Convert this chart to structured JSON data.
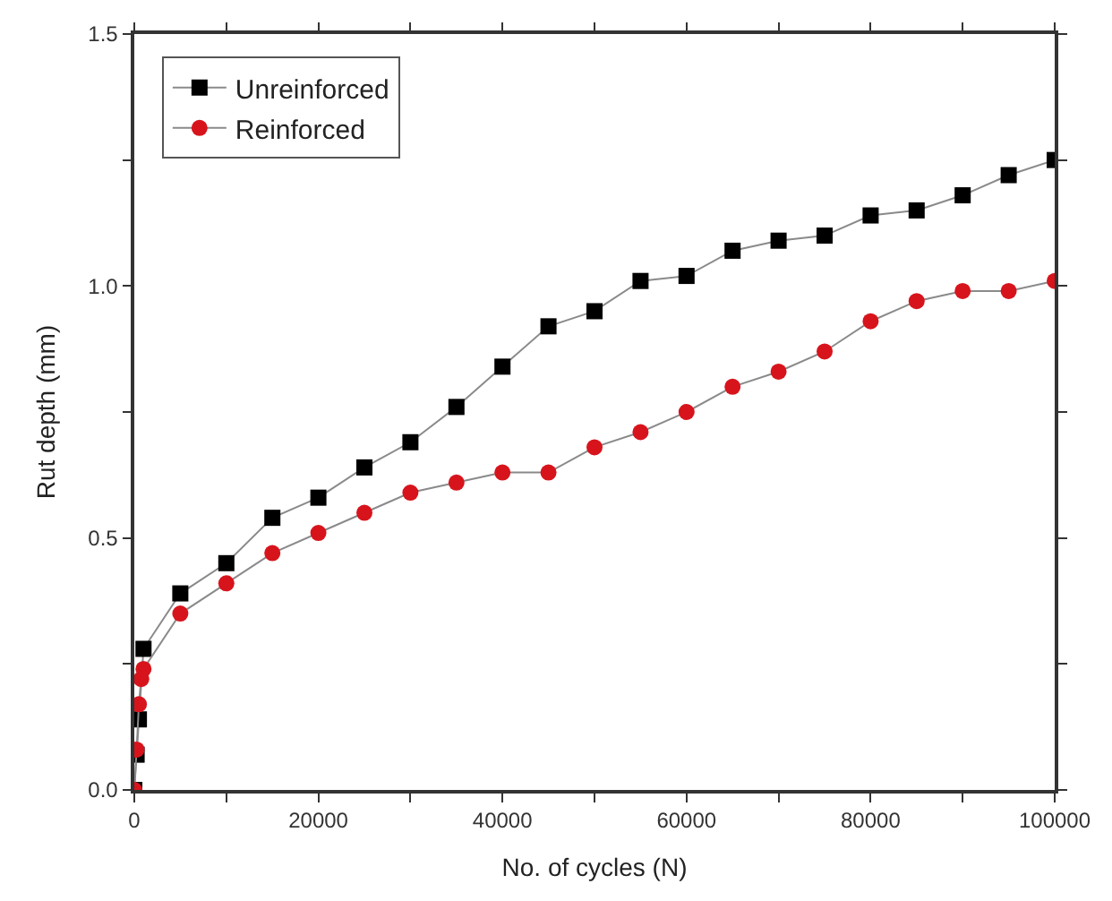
{
  "chart_data": {
    "type": "line",
    "xlabel": "No. of cycles (N)",
    "ylabel": "Rut depth (mm)",
    "xlim": [
      0,
      100000
    ],
    "ylim": [
      0,
      1.5
    ],
    "xticks": [
      0,
      {
        "value": 10000,
        "label": null
      },
      20000,
      {
        "value": 30000,
        "label": null
      },
      40000,
      {
        "value": 50000,
        "label": null
      },
      60000,
      {
        "value": 70000,
        "label": null
      },
      80000,
      {
        "value": 90000,
        "label": null
      },
      100000
    ],
    "yticks": [
      {
        "value": 0,
        "label": "0.0"
      },
      {
        "value": 0.25,
        "label": null
      },
      0.5,
      {
        "value": 0.75,
        "label": null
      },
      {
        "value": 1,
        "label": "1.0"
      },
      {
        "value": 1.25,
        "label": null
      },
      1.5
    ],
    "legend": "top left",
    "series": [
      {
        "name": "Unreinforced",
        "color": "#000000",
        "marker": "square",
        "x": [
          0,
          250,
          500,
          1000,
          5000,
          10000,
          15000,
          20000,
          25000,
          30000,
          35000,
          40000,
          45000,
          50000,
          55000,
          60000,
          65000,
          70000,
          75000,
          80000,
          85000,
          90000,
          95000,
          100000
        ],
        "values": [
          0,
          0.07,
          0.14,
          0.28,
          0.39,
          0.45,
          0.54,
          0.58,
          0.64,
          0.69,
          0.76,
          0.84,
          0.92,
          0.95,
          1.01,
          1.02,
          1.07,
          1.09,
          1.1,
          1.14,
          1.15,
          1.18,
          1.22,
          1.25
        ]
      },
      {
        "name": "Reinforced",
        "color": "#d7141c",
        "marker": "circle",
        "x": [
          0,
          250,
          500,
          750,
          1000,
          5000,
          10000,
          15000,
          20000,
          25000,
          30000,
          35000,
          40000,
          45000,
          50000,
          55000,
          60000,
          65000,
          70000,
          75000,
          80000,
          85000,
          90000,
          95000,
          100000
        ],
        "values": [
          0,
          0.08,
          0.17,
          0.22,
          0.24,
          0.35,
          0.41,
          0.47,
          0.51,
          0.55,
          0.59,
          0.61,
          0.63,
          0.63,
          0.68,
          0.71,
          0.75,
          0.8,
          0.83,
          0.87,
          0.93,
          0.97,
          0.99,
          0.99,
          1.01
        ]
      }
    ]
  }
}
